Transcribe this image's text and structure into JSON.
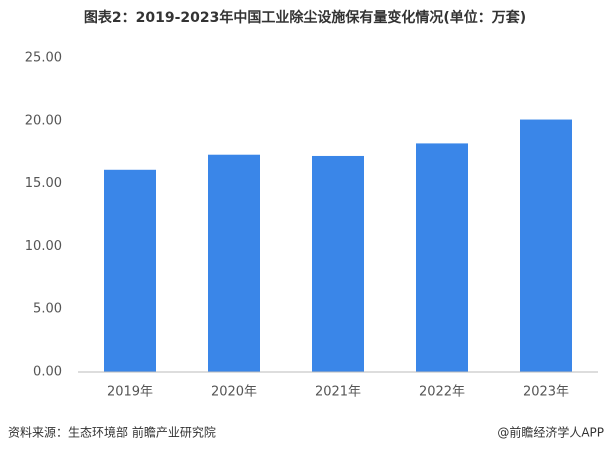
{
  "chart_data": {
    "type": "bar",
    "title": "图表2：2019-2023年中国工业除尘设施保有量变化情况(单位：万套)",
    "categories": [
      "2019年",
      "2020年",
      "2021年",
      "2022年",
      "2023年"
    ],
    "values": [
      16.1,
      17.3,
      17.2,
      18.2,
      20.1
    ],
    "color": "#3a86e8",
    "ylim": [
      0,
      25
    ],
    "yticks": [
      {
        "value": 0,
        "label": "0.00"
      },
      {
        "value": 5,
        "label": "5.00"
      },
      {
        "value": 10,
        "label": "10.00"
      },
      {
        "value": 15,
        "label": "15.00"
      },
      {
        "value": 20,
        "label": "20.00"
      },
      {
        "value": 25,
        "label": "25.00"
      }
    ],
    "grid": false,
    "source": "资料来源：生态环境部 前瞻产业研究院",
    "credit": "@前瞻经济学人APP"
  }
}
